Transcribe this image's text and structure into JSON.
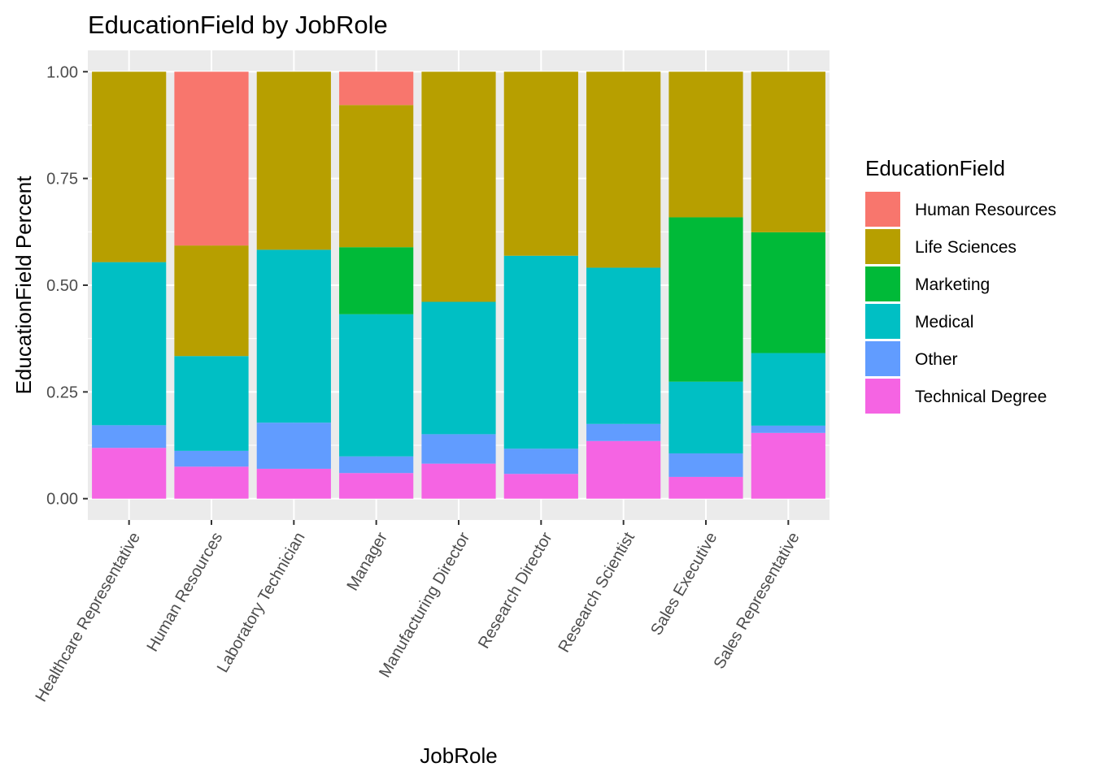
{
  "chart_data": {
    "type": "bar",
    "stacked": true,
    "title": "EducationField by JobRole",
    "xlabel": "JobRole",
    "ylabel": "EducationField Percent",
    "ylim": [
      -0.05,
      1.05
    ],
    "yticks": [
      "0.00",
      "0.25",
      "0.50",
      "0.75",
      "1.00"
    ],
    "ytick_values": [
      0,
      0.25,
      0.5,
      0.75,
      1.0
    ],
    "grid": true,
    "legend_title": "EducationField",
    "legend_position": "right",
    "categories": [
      "Healthcare Representative",
      "Human Resources",
      "Laboratory Technician",
      "Manager",
      "Manufacturing Director",
      "Research Director",
      "Research Scientist",
      "Sales Executive",
      "Sales Representative"
    ],
    "series": [
      {
        "name": "Human Resources",
        "color": "#F8766D",
        "values": [
          0,
          0.407,
          0,
          0.078,
          0,
          0,
          0,
          0,
          0
        ]
      },
      {
        "name": "Life Sciences",
        "color": "#B79F00",
        "values": [
          0.446,
          0.259,
          0.417,
          0.333,
          0.539,
          0.431,
          0.459,
          0.341,
          0.376
        ]
      },
      {
        "name": "Marketing",
        "color": "#00BA38",
        "values": [
          0,
          0,
          0,
          0.157,
          0,
          0,
          0,
          0.385,
          0.283
        ]
      },
      {
        "name": "Medical",
        "color": "#00BFC4",
        "values": [
          0.382,
          0.222,
          0.405,
          0.333,
          0.31,
          0.452,
          0.366,
          0.168,
          0.17
        ]
      },
      {
        "name": "Other",
        "color": "#619CFF",
        "values": [
          0.053,
          0.037,
          0.108,
          0.039,
          0.069,
          0.059,
          0.04,
          0.055,
          0.017
        ]
      },
      {
        "name": "Technical Degree",
        "color": "#F564E3",
        "values": [
          0.119,
          0.075,
          0.07,
          0.06,
          0.082,
          0.058,
          0.135,
          0.051,
          0.154
        ]
      }
    ]
  }
}
